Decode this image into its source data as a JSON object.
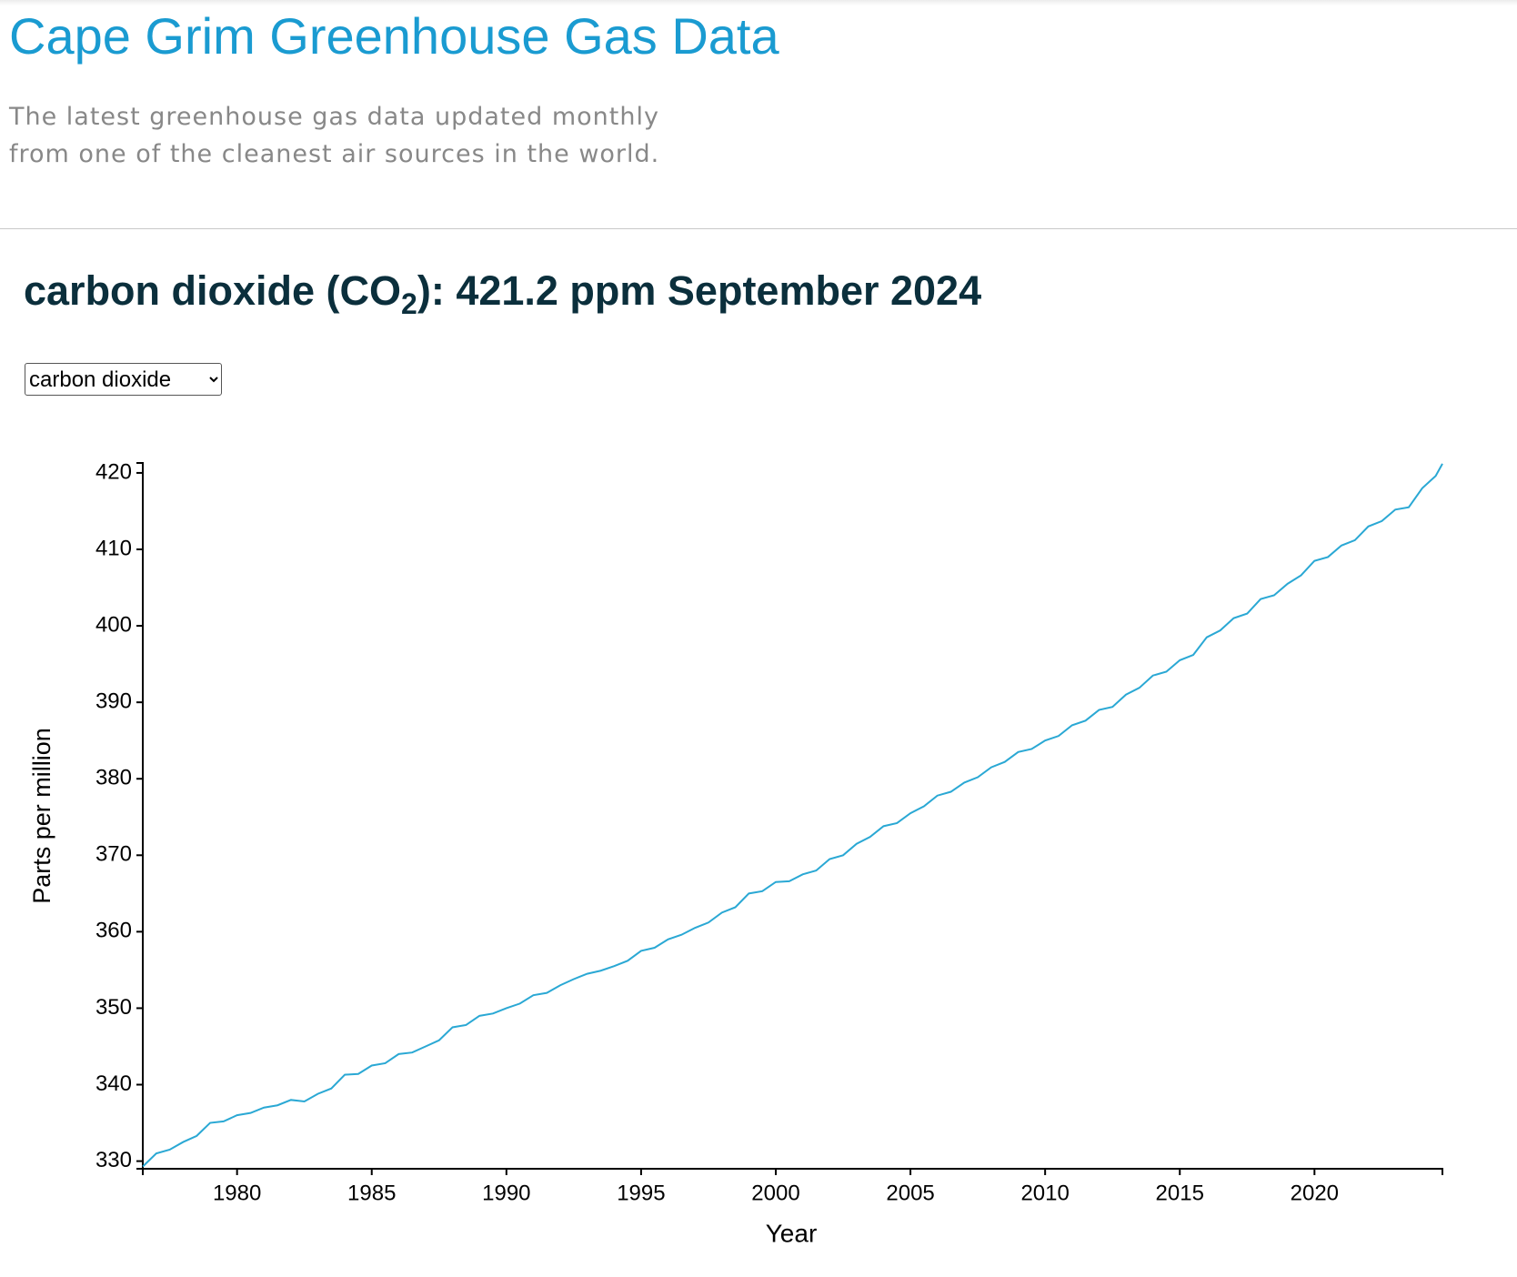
{
  "header": {
    "title": "Cape Grim Greenhouse Gas Data",
    "subtitle_lines": [
      "The latest greenhouse gas data updated monthly",
      "from one of the cleanest air sources in the world."
    ]
  },
  "heading": {
    "before": "carbon dioxide (CO",
    "subscript": "2",
    "after": "): 421.2 ppm September 2024"
  },
  "selector": {
    "selected": "carbon dioxide"
  },
  "chart_data": {
    "type": "line",
    "x_label": "Year",
    "y_label": "Parts per million",
    "x": [
      1976.5,
      1977.0,
      1977.5,
      1978.0,
      1978.5,
      1979.0,
      1979.5,
      1980.0,
      1980.5,
      1981.0,
      1981.5,
      1982.0,
      1982.5,
      1983.0,
      1983.5,
      1984.0,
      1984.5,
      1985.0,
      1985.5,
      1986.0,
      1986.5,
      1987.0,
      1987.5,
      1988.0,
      1988.5,
      1989.0,
      1989.5,
      1990.0,
      1990.5,
      1991.0,
      1991.5,
      1992.0,
      1992.5,
      1993.0,
      1993.5,
      1994.0,
      1994.5,
      1995.0,
      1995.5,
      1996.0,
      1996.5,
      1997.0,
      1997.5,
      1998.0,
      1998.5,
      1999.0,
      1999.5,
      2000.0,
      2000.5,
      2001.0,
      2001.5,
      2002.0,
      2002.5,
      2003.0,
      2003.5,
      2004.0,
      2004.5,
      2005.0,
      2005.5,
      2006.0,
      2006.5,
      2007.0,
      2007.5,
      2008.0,
      2008.5,
      2009.0,
      2009.5,
      2010.0,
      2010.5,
      2011.0,
      2011.5,
      2012.0,
      2012.5,
      2013.0,
      2013.5,
      2014.0,
      2014.5,
      2015.0,
      2015.5,
      2016.0,
      2016.5,
      2017.0,
      2017.5,
      2018.0,
      2018.5,
      2019.0,
      2019.5,
      2020.0,
      2020.5,
      2021.0,
      2021.5,
      2022.0,
      2022.5,
      2023.0,
      2023.5,
      2024.0,
      2024.5,
      2024.75
    ],
    "series": [
      {
        "name": "carbon dioxide",
        "color": "#2aa8d4",
        "values": [
          329.3,
          331.0,
          331.5,
          332.5,
          333.3,
          335.0,
          335.2,
          336.0,
          336.3,
          337.0,
          337.3,
          338.0,
          337.8,
          338.8,
          339.5,
          341.3,
          341.4,
          342.5,
          342.8,
          344.0,
          344.2,
          345.0,
          345.8,
          347.5,
          347.8,
          349.0,
          349.3,
          350.0,
          350.6,
          351.7,
          352.0,
          353.0,
          353.8,
          354.5,
          354.9,
          355.5,
          356.2,
          357.5,
          357.9,
          359.0,
          359.6,
          360.5,
          361.2,
          362.5,
          363.2,
          365.0,
          365.3,
          366.5,
          366.6,
          367.5,
          368.0,
          369.5,
          370.0,
          371.5,
          372.4,
          373.8,
          374.2,
          375.5,
          376.4,
          377.8,
          378.3,
          379.5,
          380.2,
          381.5,
          382.2,
          383.5,
          383.9,
          385.0,
          385.6,
          387.0,
          387.6,
          389.0,
          389.4,
          391.0,
          391.9,
          393.5,
          394.0,
          395.5,
          396.2,
          398.5,
          399.4,
          401.0,
          401.6,
          403.5,
          404.0,
          405.5,
          406.6,
          408.5,
          409.0,
          410.5,
          411.2,
          413.0,
          413.7,
          415.2,
          415.5,
          418.0,
          419.6,
          421.2
        ]
      }
    ],
    "xlim": [
      1976.5,
      2024.75
    ],
    "ylim": [
      329,
      421.3
    ],
    "xticks": [
      1980,
      1985,
      1990,
      1995,
      2000,
      2005,
      2010,
      2015,
      2020
    ],
    "yticks": [
      330,
      340,
      350,
      360,
      370,
      380,
      390,
      400,
      410,
      420
    ]
  }
}
